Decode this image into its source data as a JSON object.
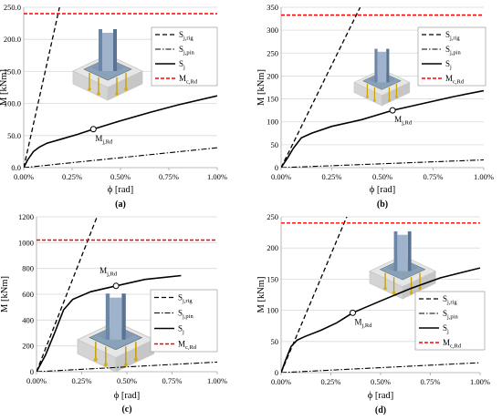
{
  "chart_data": [
    {
      "panel": "(a)",
      "type": "line",
      "xlabel": "ϕ [rad]",
      "ylabel": "M [kNm]",
      "xlim": [
        0,
        0.01
      ],
      "ylim": [
        0,
        250
      ],
      "xticks": [
        "0.00%",
        "0.25%",
        "0.50%",
        "0.75%",
        "1.00%"
      ],
      "yticks": [
        "0.0",
        "50.0",
        "100.0",
        "150.0",
        "200.0",
        "250.0"
      ],
      "grid": "horizontal",
      "legend_position": "top-right",
      "legend": [
        "Sj,rig",
        "Sj,pin",
        "Sj",
        "Mc,Rd"
      ],
      "annotation": {
        "label": "Mj,Rd",
        "x": 0.0036,
        "y": 60
      },
      "series": [
        {
          "name": "Sj,rig",
          "style": "dashed",
          "x": [
            0,
            0.00185
          ],
          "y": [
            0,
            250
          ]
        },
        {
          "name": "Sj,pin",
          "style": "dashdot",
          "x": [
            0,
            0.01
          ],
          "y": [
            0,
            31
          ]
        },
        {
          "name": "Sj",
          "style": "solid",
          "x": [
            0,
            0.0002,
            0.0005,
            0.0008,
            0.0012,
            0.002,
            0.0028,
            0.0036,
            0.005,
            0.0065,
            0.008,
            0.01
          ],
          "y": [
            0,
            12,
            25,
            32,
            38,
            45,
            52,
            60,
            73,
            86,
            98,
            112
          ]
        },
        {
          "name": "Mc,Rd",
          "style": "red-dashed",
          "x": [
            0,
            0.01
          ],
          "y": [
            240,
            240
          ]
        }
      ]
    },
    {
      "panel": "(b)",
      "type": "line",
      "xlabel": "ϕ [rad]",
      "ylabel": "M [kNm]",
      "xlim": [
        0,
        0.01
      ],
      "ylim": [
        0,
        350
      ],
      "xticks": [
        "0.00%",
        "0.25%",
        "0.50%",
        "0.75%",
        "1.00%"
      ],
      "yticks": [
        "0",
        "50",
        "100",
        "150",
        "200",
        "250",
        "300",
        "350"
      ],
      "grid": "horizontal",
      "legend_position": "top-right",
      "legend": [
        "Sj,rig",
        "Sj,pin",
        "Sj",
        "Mc,Rd"
      ],
      "annotation": {
        "label": "Mj,Rd",
        "x": 0.0055,
        "y": 125
      },
      "series": [
        {
          "name": "Sj,rig",
          "style": "dashed",
          "x": [
            0,
            0.0039
          ],
          "y": [
            0,
            350
          ]
        },
        {
          "name": "Sj,pin",
          "style": "dashdot",
          "x": [
            0,
            0.01
          ],
          "y": [
            0,
            17
          ]
        },
        {
          "name": "Sj",
          "style": "solid",
          "x": [
            0,
            0.0003,
            0.0006,
            0.001,
            0.0015,
            0.0025,
            0.004,
            0.0055,
            0.007,
            0.0085,
            0.01
          ],
          "y": [
            0,
            20,
            42,
            65,
            75,
            90,
            105,
            125,
            140,
            155,
            168
          ]
        },
        {
          "name": "Mc,Rd",
          "style": "red-dashed",
          "x": [
            0,
            0.01
          ],
          "y": [
            333,
            333
          ]
        }
      ]
    },
    {
      "panel": "(c)",
      "type": "line",
      "xlabel": "ϕ [rad]",
      "ylabel": "M [kNm]",
      "xlim": [
        0,
        0.01
      ],
      "ylim": [
        0,
        1200
      ],
      "xticks": [
        "0.00%",
        "0.25%",
        "0.50%",
        "0.75%",
        "1.00%"
      ],
      "yticks": [
        "0",
        "200",
        "400",
        "600",
        "800",
        "1000",
        "1200"
      ],
      "grid": "horizontal",
      "legend_position": "bottom-right",
      "legend": [
        "Sj,rig",
        "Sj,pin",
        "Sj",
        "Mc,Rd"
      ],
      "annotation": {
        "label": "Mj,Rd",
        "x": 0.0044,
        "y": 665
      },
      "series": [
        {
          "name": "Sj,rig",
          "style": "dashed",
          "x": [
            0,
            0.00335
          ],
          "y": [
            0,
            1200
          ]
        },
        {
          "name": "Sj,pin",
          "style": "dashdot",
          "x": [
            0,
            0.01
          ],
          "y": [
            0,
            75
          ]
        },
        {
          "name": "Sj",
          "style": "solid",
          "x": [
            0,
            0.0005,
            0.001,
            0.0015,
            0.002,
            0.003,
            0.0044,
            0.006,
            0.008
          ],
          "y": [
            0,
            130,
            300,
            480,
            560,
            620,
            665,
            715,
            745
          ]
        },
        {
          "name": "Mc,Rd",
          "style": "red-dashed",
          "x": [
            0,
            0.01
          ],
          "y": [
            1020,
            1020
          ]
        }
      ]
    },
    {
      "panel": "(d)",
      "type": "line",
      "xlabel": "ϕ [rad]",
      "ylabel": "M [kNm]",
      "xlim": [
        0,
        0.01
      ],
      "ylim": [
        0,
        250
      ],
      "xticks": [
        "0.00%",
        "0.25%",
        "0.50%",
        "0.75%",
        "1.00%"
      ],
      "yticks": [
        "0",
        "50",
        "100",
        "150",
        "200",
        "250"
      ],
      "grid": "horizontal",
      "legend_position": "bottom-right",
      "legend": [
        "Sj,rig",
        "Sj,pin",
        "Sj",
        "Mc,Rd"
      ],
      "annotation": {
        "label": "Mj,Rd",
        "x": 0.0036,
        "y": 96
      },
      "series": [
        {
          "name": "Sj,rig",
          "style": "dashed",
          "x": [
            0,
            0.0033
          ],
          "y": [
            0,
            250
          ]
        },
        {
          "name": "Sj,pin",
          "style": "dashdot",
          "x": [
            0,
            0.01
          ],
          "y": [
            0,
            16
          ]
        },
        {
          "name": "Sj",
          "style": "solid",
          "x": [
            0,
            0.0002,
            0.0005,
            0.0008,
            0.0012,
            0.002,
            0.0028,
            0.0036,
            0.005,
            0.0065,
            0.008,
            0.01
          ],
          "y": [
            0,
            18,
            42,
            52,
            58,
            68,
            80,
            96,
            115,
            135,
            152,
            168
          ]
        },
        {
          "name": "Mc,Rd",
          "style": "red-dashed",
          "x": [
            0,
            0.01
          ],
          "y": [
            240,
            240
          ]
        }
      ]
    }
  ]
}
